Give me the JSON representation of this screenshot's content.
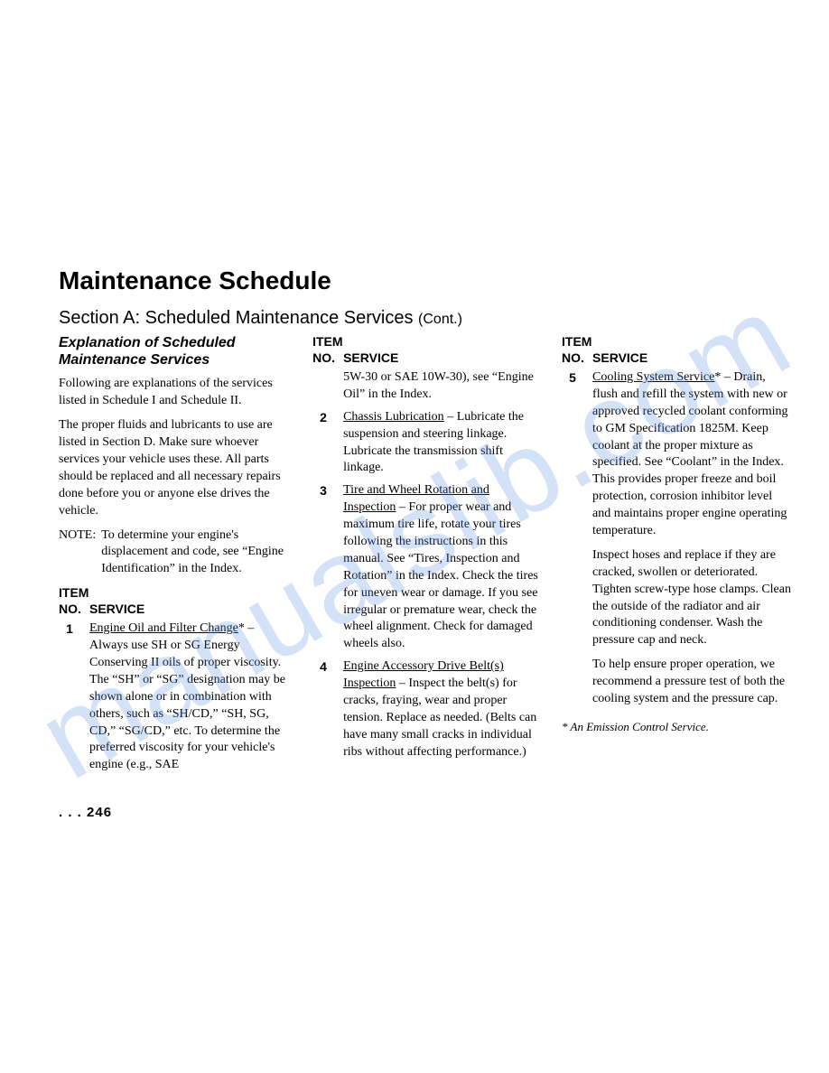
{
  "watermark": "manualslib.com",
  "main_title": "Maintenance Schedule",
  "section_title": "Section A:  Scheduled Maintenance Services",
  "section_cont": "(Cont.)",
  "sub_heading": "Explanation of Scheduled Maintenance Services",
  "intro_para1": "Following are explanations of the services listed in Schedule I and Schedule II.",
  "intro_para2": "The proper fluids and lubricants to use are listed in Section D. Make sure whoever services your vehicle uses these. All parts should be replaced and all necessary repairs done before you or anyone else drives the vehicle.",
  "note_label": "NOTE:",
  "note_text": "To determine your engine's displacement and code, see “Engine Identification” in the Index.",
  "item_header_line1": "ITEM",
  "item_header_no": "NO.",
  "item_header_service": "SERVICE",
  "col2_continuation": "5W-30 or SAE 10W-30), see “Engine Oil” in the Index.",
  "items": {
    "i1": {
      "num": "1",
      "name": "Engine Oil and Filter Change",
      "star": "*",
      "body": " – Always use SH or SG Energy Conserving II oils of proper viscosity. The “SH” or “SG” designation may be shown alone or in combination with others, such as “SH/CD,” “SH, SG, CD,” “SG/CD,” etc. To determine the preferred viscosity for your vehicle's engine (e.g., SAE"
    },
    "i2": {
      "num": "2",
      "name": "Chassis Lubrication",
      "body": " – Lubricate the suspension and steering linkage. Lubricate the transmission shift linkage."
    },
    "i3": {
      "num": "3",
      "name": "Tire and Wheel Rotation and Inspection",
      "body": " – For proper wear and maximum tire life, rotate your tires following the instructions in this manual. See “Tires, Inspection and Rotation” in the Index. Check the tires for uneven wear or damage. If you see irregular or premature wear, check the wheel alignment. Check for damaged wheels also."
    },
    "i4": {
      "num": "4",
      "name": "Engine Accessory Drive Belt(s) Inspection",
      "body": " – Inspect the belt(s) for cracks, fraying, wear and proper tension. Replace as needed. (Belts can have many small cracks in individual ribs without affecting performance.)"
    },
    "i5": {
      "num": "5",
      "name": "Cooling System Service",
      "star": "*",
      "body": " – Drain, flush and refill the system with new or approved recycled coolant conforming to GM Specification 1825M. Keep coolant at the proper mixture as specified. See “Coolant” in the Index. This provides proper freeze and boil protection, corrosion inhibitor level and maintains proper engine operating temperature.",
      "p2": "Inspect hoses and replace if they are cracked, swollen or deteriorated. Tighten screw-type hose clamps. Clean the outside of the radiator and air conditioning condenser. Wash the pressure cap and neck.",
      "p3": "To help ensure proper operation, we recommend a pressure test of both the cooling system and the pressure cap."
    }
  },
  "footnote": "* An Emission Control Service.",
  "page_number": ". . . 246"
}
